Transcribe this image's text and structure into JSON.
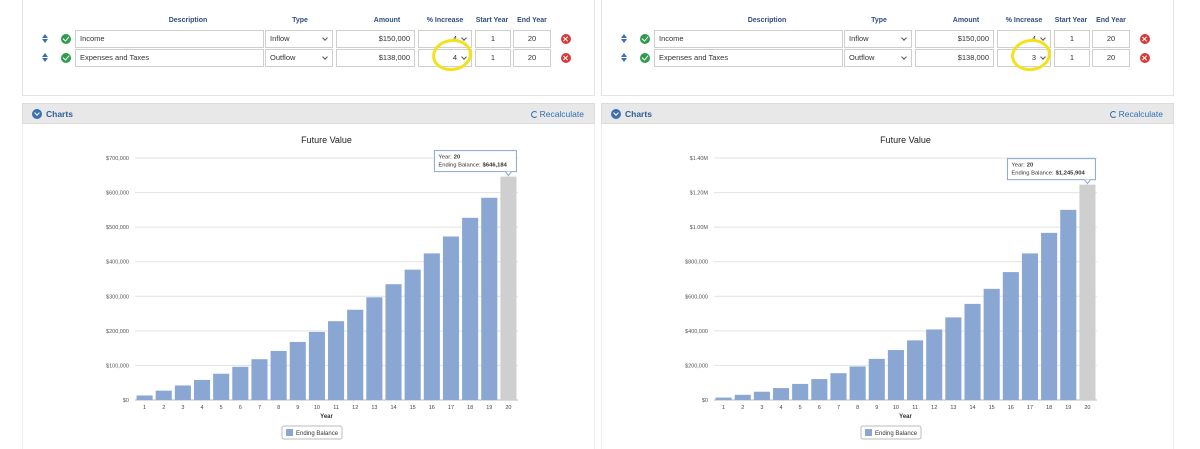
{
  "columns": {
    "description": "Description",
    "type": "Type",
    "amount": "Amount",
    "increase": "% Increase",
    "start_year": "Start Year",
    "end_year": "End Year"
  },
  "section": {
    "title": "Charts",
    "recalculate": "Recalculate"
  },
  "panels": [
    {
      "rows": [
        {
          "description": "Income",
          "type": "Inflow",
          "amount": "$150,000",
          "increase": "4",
          "start": "1",
          "end": "20"
        },
        {
          "description": "Expenses and Taxes",
          "type": "Outflow",
          "amount": "$138,000",
          "increase": "4",
          "start": "1",
          "end": "20"
        }
      ],
      "highlight_row": 1
    },
    {
      "rows": [
        {
          "description": "Income",
          "type": "Inflow",
          "amount": "$150,000",
          "increase": "4",
          "start": "1",
          "end": "20"
        },
        {
          "description": "Expenses and Taxes",
          "type": "Outflow",
          "amount": "$138,000",
          "increase": "3",
          "start": "1",
          "end": "20"
        }
      ],
      "highlight_row": 1
    }
  ],
  "chart_data": [
    {
      "type": "bar",
      "title": "Future Value",
      "xlabel": "Year",
      "ylabel": "",
      "categories": [
        "1",
        "2",
        "3",
        "4",
        "5",
        "6",
        "7",
        "8",
        "9",
        "10",
        "11",
        "12",
        "13",
        "14",
        "15",
        "16",
        "17",
        "18",
        "19",
        "20"
      ],
      "series": [
        {
          "name": "Ending Balance",
          "values": [
            13000,
            27000,
            42000,
            58000,
            76000,
            96000,
            118000,
            142000,
            168000,
            197000,
            228000,
            261000,
            297000,
            335000,
            377000,
            424000,
            473000,
            527000,
            585000,
            646184
          ]
        }
      ],
      "ylim": [
        0,
        700000
      ],
      "yticks": [
        0,
        100000,
        200000,
        300000,
        400000,
        500000,
        600000,
        700000
      ],
      "ytick_labels": [
        "$0",
        "$100,000",
        "$200,000",
        "$300,000",
        "$400,000",
        "$500,000",
        "$600,000",
        "$700,000"
      ],
      "tooltip": {
        "year_label": "Year:",
        "year": "20",
        "balance_label": "Ending Balance:",
        "balance": "$646,184"
      },
      "highlight_index": 19,
      "colors": {
        "bar": "#8aa6d3",
        "highlight": "#cfcfcf"
      },
      "grid": true,
      "legend": "bottom-center"
    },
    {
      "type": "bar",
      "title": "Future Value",
      "xlabel": "Year",
      "ylabel": "",
      "categories": [
        "1",
        "2",
        "3",
        "4",
        "5",
        "6",
        "7",
        "8",
        "9",
        "10",
        "11",
        "12",
        "13",
        "14",
        "15",
        "16",
        "17",
        "18",
        "19",
        "20"
      ],
      "series": [
        {
          "name": "Ending Balance",
          "values": [
            14000,
            30000,
            48000,
            69000,
            93000,
            121000,
            155000,
            194000,
            238000,
            289000,
            345000,
            408000,
            478000,
            556000,
            643000,
            740000,
            848000,
            967000,
            1100000,
            1245904
          ]
        }
      ],
      "ylim": [
        0,
        1400000
      ],
      "yticks": [
        0,
        200000,
        400000,
        600000,
        800000,
        1000000,
        1200000,
        1400000
      ],
      "ytick_labels": [
        "$0",
        "$200,000",
        "$400,000",
        "$600,000",
        "$800,000",
        "$1.00M",
        "$1.20M",
        "$1.40M"
      ],
      "tooltip": {
        "year_label": "Year:",
        "year": "20",
        "balance_label": "Ending Balance:",
        "balance": "$1,245,904"
      },
      "highlight_index": 19,
      "colors": {
        "bar": "#8aa6d3",
        "highlight": "#cfcfcf"
      },
      "grid": true,
      "legend": "bottom-center"
    }
  ]
}
